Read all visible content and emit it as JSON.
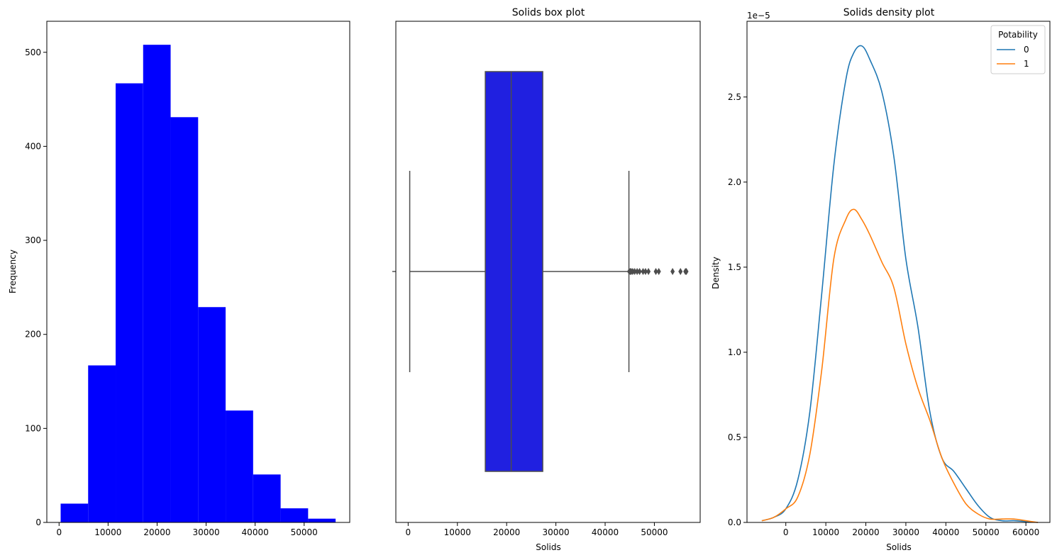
{
  "chart_data": [
    {
      "type": "bar",
      "subtype": "histogram",
      "title": "",
      "xlabel": "",
      "ylabel": "Frequency",
      "color": "#0000ff",
      "bins": [
        {
          "x0": 320,
          "x1": 5930,
          "count": 20
        },
        {
          "x0": 5930,
          "x1": 11540,
          "count": 167
        },
        {
          "x0": 11540,
          "x1": 17150,
          "count": 467
        },
        {
          "x0": 17150,
          "x1": 22760,
          "count": 508
        },
        {
          "x0": 22760,
          "x1": 28370,
          "count": 431
        },
        {
          "x0": 28370,
          "x1": 33980,
          "count": 229
        },
        {
          "x0": 33980,
          "x1": 39590,
          "count": 119
        },
        {
          "x0": 39590,
          "x1": 45200,
          "count": 51
        },
        {
          "x0": 45200,
          "x1": 50810,
          "count": 15
        },
        {
          "x0": 50810,
          "x1": 56420,
          "count": 4
        }
      ],
      "xlim": [
        -2500,
        59300
      ],
      "ylim": [
        0,
        533
      ],
      "xticks": [
        0,
        10000,
        20000,
        30000,
        40000,
        50000
      ],
      "xtick_labels": [
        "0",
        "10000",
        "20000",
        "30000",
        "40000",
        "50000"
      ],
      "yticks": [
        0,
        100,
        200,
        300,
        400,
        500
      ],
      "ytick_labels": [
        "0",
        "100",
        "200",
        "300",
        "400",
        "500"
      ]
    },
    {
      "type": "box",
      "title": "Solids box plot",
      "xlabel": "Solids",
      "ylabel": "",
      "color": "#2020e0",
      "line_color": "#4d4d4d",
      "whisker_low": 320,
      "q1": 15666,
      "median": 20928,
      "q3": 27333,
      "whisker_high": 44830,
      "outliers": [
        44900,
        45100,
        45300,
        45600,
        46000,
        46500,
        47000,
        47700,
        48200,
        48800,
        50300,
        50900,
        53700,
        55300,
        56300,
        56500
      ],
      "xlim": [
        -2500,
        59300
      ],
      "xticks": [
        0,
        10000,
        20000,
        30000,
        40000,
        50000
      ],
      "xtick_labels": [
        "0",
        "10000",
        "20000",
        "30000",
        "40000",
        "50000"
      ]
    },
    {
      "type": "line",
      "subtype": "kde",
      "title": "Solids density plot",
      "xlabel": "Solids",
      "ylabel": "Density",
      "offset_label": "1e−5",
      "legend": {
        "title": "Potability",
        "placement": "top-right"
      },
      "xlim": [
        -9700,
        66000
      ],
      "ylim": [
        0,
        2.945e-05
      ],
      "xticks": [
        0,
        10000,
        20000,
        30000,
        40000,
        50000,
        60000
      ],
      "xtick_labels": [
        "0",
        "10000",
        "20000",
        "30000",
        "40000",
        "50000",
        "60000"
      ],
      "yticks": [
        0,
        5e-06,
        1e-05,
        1.5e-05,
        2e-05,
        2.5e-05
      ],
      "ytick_labels": [
        "0.0",
        "0.5",
        "1.0",
        "1.5",
        "2.0",
        "2.5"
      ],
      "x": [
        -6000,
        -3000,
        0,
        3000,
        6000,
        9000,
        12000,
        15000,
        17000,
        19000,
        21000,
        24000,
        27000,
        30000,
        33000,
        36000,
        39000,
        42000,
        45000,
        48000,
        51000,
        54000,
        57000,
        60000,
        63000
      ],
      "series": [
        {
          "name": "0",
          "color": "#1f77b4",
          "values": [
            1e-07,
            3e-07,
            8e-07,
            2.5e-06,
            6.5e-06,
            1.35e-05,
            2.1e-05,
            2.6e-05,
            2.76e-05,
            2.8e-05,
            2.72e-05,
            2.53e-05,
            2.15e-05,
            1.55e-05,
            1.15e-05,
            6.5e-06,
            3.8e-06,
            3e-06,
            2e-06,
            1e-06,
            3e-07,
            1e-07,
            1e-07,
            5e-08,
            0.0
          ]
        },
        {
          "name": "1",
          "color": "#ff7f0e",
          "values": [
            1e-07,
            3e-07,
            8e-07,
            1.5e-06,
            4e-06,
            9e-06,
            1.55e-05,
            1.78e-05,
            1.84e-05,
            1.78e-05,
            1.69e-05,
            1.53e-05,
            1.38e-05,
            1.05e-05,
            7.9e-06,
            6e-06,
            3.8e-06,
            2.3e-06,
            1.1e-06,
            5e-07,
            2e-07,
            2e-07,
            2e-07,
            1e-07,
            0.0
          ]
        }
      ]
    }
  ]
}
